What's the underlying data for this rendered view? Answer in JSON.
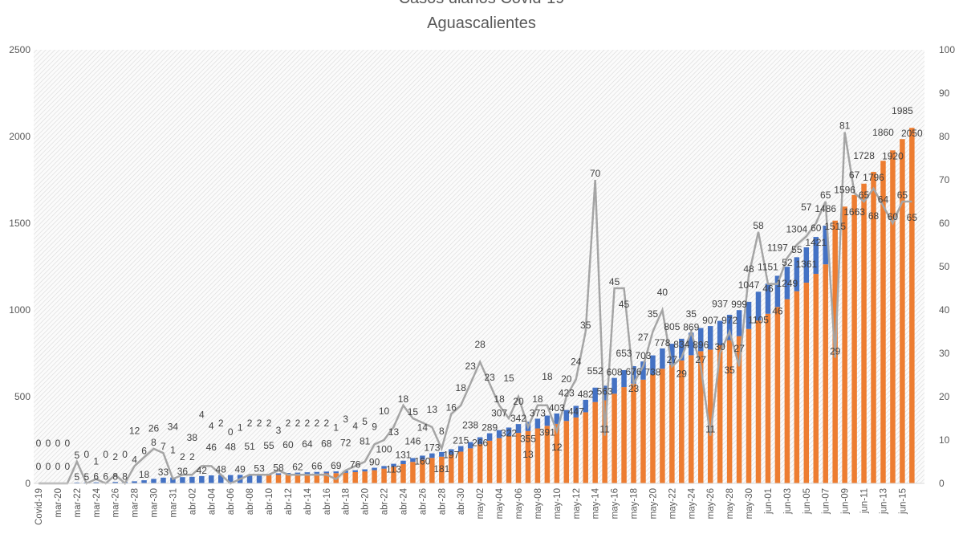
{
  "chart_data": {
    "type": "bar+line",
    "title": "Casos diarios Covid-19",
    "subtitle": "Aguascalientes",
    "categories": [
      "Covid-19",
      "mar-19",
      "mar-20",
      "mar-21",
      "mar-22",
      "mar-23",
      "mar-24",
      "mar-25",
      "mar-26",
      "mar-27",
      "mar-28",
      "mar-29",
      "mar-30",
      "mar-30",
      "mar-31",
      "abr-01",
      "abr-02",
      "abr-03",
      "abr-04",
      "abr-05",
      "abr-06",
      "abr-07",
      "abr-08",
      "abr-09",
      "abr-10",
      "abr-11",
      "abr-12",
      "abr-13",
      "abr-14",
      "abr-15",
      "abr-16",
      "abr-17",
      "abr-18",
      "abr-19",
      "abr-20",
      "abr-21",
      "abr-22",
      "abr-23",
      "abr-24",
      "abr-25",
      "abr-26",
      "abr-27",
      "abr-28",
      "abr-29",
      "abr-30",
      "may-01",
      "may-02",
      "may-03",
      "may-04",
      "may-05",
      "may-06",
      "may-07",
      "may-08",
      "may-09",
      "may-10",
      "may-11",
      "may-12",
      "may-13",
      "may-14",
      "may-15",
      "may-16",
      "may-17",
      "may-18",
      "may-19",
      "may-20",
      "may-21",
      "may-22",
      "may-23",
      "may-24",
      "may-25",
      "may-26",
      "may-27",
      "may-28",
      "may-29",
      "may-30",
      "may-31",
      "jun-01",
      "jun-02",
      "jun-03",
      "jun-04",
      "jun-05",
      "jun-06",
      "jun-07",
      "jun-08",
      "jun-09",
      "jun-10",
      "jun-11",
      "jun-12",
      "jun-13",
      "jun-14",
      "jun-15",
      "jun-16"
    ],
    "bar_totals": [
      0,
      0,
      0,
      0,
      5,
      5,
      6,
      6,
      8,
      8,
      12,
      18,
      26,
      33,
      34,
      36,
      38,
      42,
      46,
      48,
      48,
      49,
      51,
      53,
      55,
      58,
      60,
      62,
      64,
      66,
      68,
      69,
      72,
      76,
      81,
      90,
      100,
      113,
      131,
      146,
      160,
      173,
      181,
      197,
      215,
      238,
      266,
      289,
      307,
      322,
      342,
      355,
      373,
      391,
      403,
      423,
      447,
      482,
      552,
      563,
      608,
      653,
      676,
      703,
      738,
      778,
      805,
      834,
      869,
      896,
      907,
      937,
      972,
      999,
      1047,
      1105,
      1151,
      1197,
      1249,
      1304,
      1361,
      1421,
      1486,
      1515,
      1596,
      1663,
      1728,
      1796,
      1860,
      1920,
      1985,
      2050
    ],
    "bar_top_segment": [
      0,
      0,
      0,
      0,
      5,
      5,
      6,
      6,
      8,
      8,
      12,
      18,
      26,
      33,
      34,
      36,
      38,
      42,
      46,
      48,
      48,
      49,
      51,
      53,
      8,
      9,
      9,
      9,
      10,
      10,
      10,
      10,
      11,
      11,
      12,
      14,
      15,
      17,
      20,
      22,
      24,
      26,
      27,
      30,
      32,
      36,
      40,
      43,
      46,
      48,
      51,
      53,
      56,
      59,
      60,
      63,
      67,
      72,
      83,
      84,
      91,
      98,
      101,
      105,
      111,
      117,
      121,
      125,
      130,
      134,
      136,
      141,
      146,
      150,
      157,
      166,
      173,
      180,
      187,
      196,
      204,
      213,
      223,
      0,
      0,
      0,
      0,
      0,
      0,
      0,
      0,
      0
    ],
    "line_daily": [
      0,
      0,
      0,
      0,
      5,
      0,
      1,
      0,
      2,
      0,
      4,
      6,
      8,
      7,
      1,
      2,
      2,
      4,
      4,
      2,
      0,
      1,
      2,
      2,
      2,
      3,
      2,
      2,
      2,
      2,
      2,
      1,
      3,
      4,
      5,
      9,
      10,
      13,
      18,
      15,
      14,
      13,
      8,
      16,
      18,
      23,
      28,
      23,
      18,
      15,
      20,
      13,
      18,
      18,
      12,
      20,
      24,
      35,
      70,
      11,
      45,
      45,
      23,
      27,
      35,
      40,
      27,
      29,
      35,
      27,
      11,
      30,
      35,
      27,
      48,
      58,
      46,
      46,
      52,
      55,
      57,
      60,
      65,
      29,
      81,
      67,
      65,
      68,
      64,
      60,
      65,
      65
    ],
    "y_left": {
      "min": 0,
      "max": 2500,
      "ticks": [
        0,
        500,
        1000,
        1500,
        2000,
        2500
      ]
    },
    "y_right": {
      "min": 0,
      "max": 100,
      "ticks": [
        0,
        10,
        20,
        30,
        40,
        50,
        60,
        70,
        80,
        90,
        100
      ]
    },
    "colors": {
      "bar_base": "#ED7D31",
      "bar_top": "#4472C4",
      "line": "#A5A5A5"
    },
    "grid": false,
    "background": "hatched"
  }
}
